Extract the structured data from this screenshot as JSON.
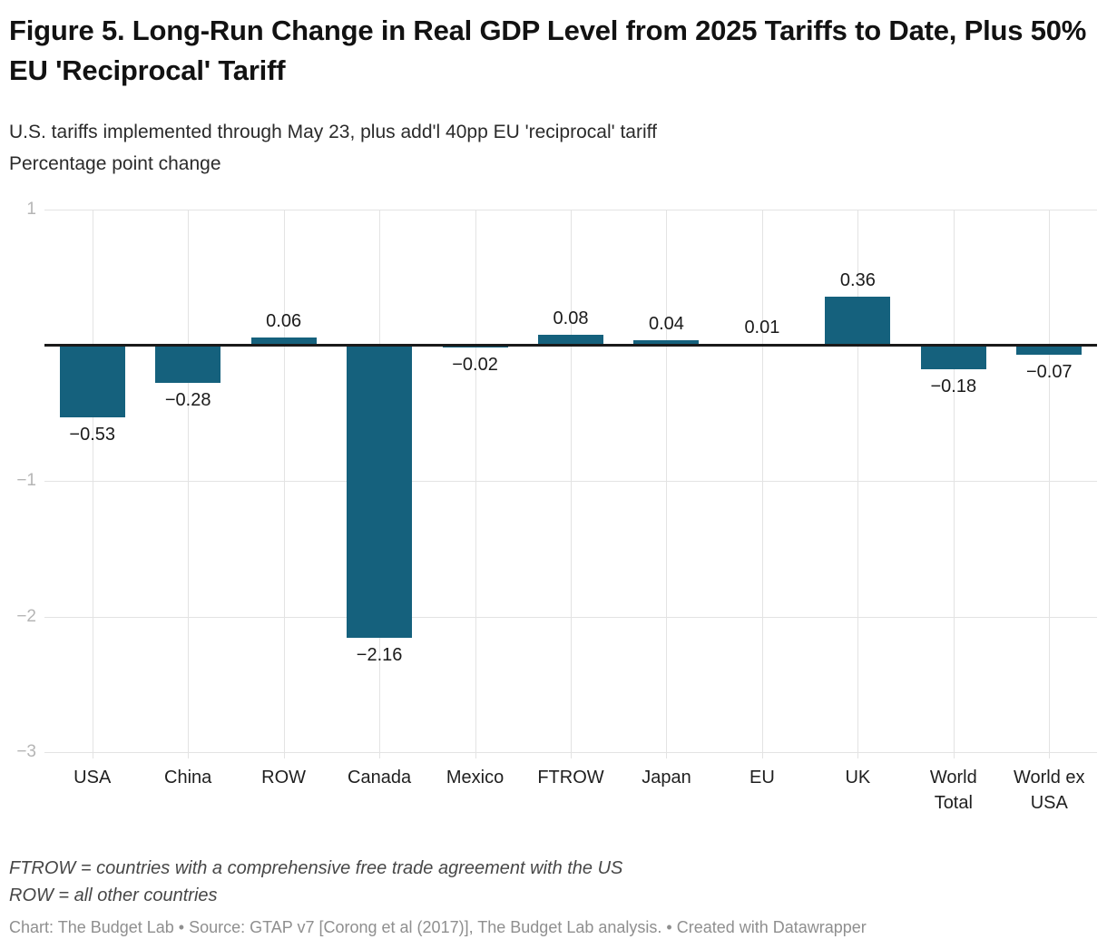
{
  "header": {
    "title": "Figure 5. Long-Run Change in Real GDP Level from 2025 Tariffs to Date, Plus 50% EU 'Reciprocal' Tariff",
    "subtitle_line1": "U.S. tariffs implemented through May 23, plus add'l 40pp EU 'reciprocal' tariff",
    "subtitle_line2": "Percentage point change"
  },
  "chart_data": {
    "type": "bar",
    "title": "Figure 5. Long-Run Change in Real GDP Level from 2025 Tariffs to Date, Plus 50% EU 'Reciprocal' Tariff",
    "subtitle": "U.S. tariffs implemented through May 23, plus add'l 40pp EU 'reciprocal' tariff",
    "ylabel": "Percentage point change",
    "categories": [
      "USA",
      "China",
      "ROW",
      "Canada",
      "Mexico",
      "FTROW",
      "Japan",
      "EU",
      "UK",
      "World Total",
      "World ex USA"
    ],
    "category_label_lines": [
      [
        "USA"
      ],
      [
        "China"
      ],
      [
        "ROW"
      ],
      [
        "Canada"
      ],
      [
        "Mexico"
      ],
      [
        "FTROW"
      ],
      [
        "Japan"
      ],
      [
        "EU"
      ],
      [
        "UK"
      ],
      [
        "World",
        "Total"
      ],
      [
        "World ex",
        "USA"
      ]
    ],
    "values": [
      -0.53,
      -0.28,
      0.06,
      -2.16,
      -0.02,
      0.08,
      0.04,
      0.01,
      0.36,
      -0.18,
      -0.07
    ],
    "value_labels": [
      "−0.53",
      "−0.28",
      "0.06",
      "−2.16",
      "−0.02",
      "0.08",
      "0.04",
      "0.01",
      "0.36",
      "−0.18",
      "−0.07"
    ],
    "y_ticks": [
      1,
      -1,
      -2,
      -3
    ],
    "y_tick_labels": [
      "1",
      "−1",
      "−2",
      "−3"
    ],
    "ylim": [
      -3,
      1
    ],
    "grid": true,
    "legend": "none",
    "bar_color": "#15617d"
  },
  "colors": {
    "bar": "#15617d",
    "zero_line": "#1a1a1a",
    "grid": "#e3e3e3",
    "y_tick_label": "#b5b5b5",
    "text": "#1a1a1a"
  },
  "footnotes": [
    "FTROW = countries with a comprehensive free trade agreement with the US",
    "ROW = all other countries"
  ],
  "credit": "Chart: The Budget Lab • Source: GTAP v7 [Corong et al (2017)], The Budget Lab analysis. • Created with Datawrapper"
}
